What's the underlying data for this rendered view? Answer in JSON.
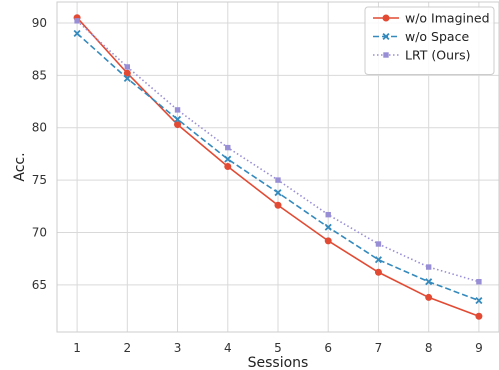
{
  "chart_data": {
    "type": "line",
    "xlabel": "Sessions",
    "ylabel": "Acc.",
    "x": [
      1,
      2,
      3,
      4,
      5,
      6,
      7,
      8,
      9
    ],
    "xlim": [
      0.6,
      9.4
    ],
    "ylim": [
      60.5,
      92
    ],
    "xticks": [
      1,
      2,
      3,
      4,
      5,
      6,
      7,
      8,
      9
    ],
    "yticks": [
      65,
      70,
      75,
      80,
      85,
      90
    ],
    "grid": true,
    "legend_position": "top-right",
    "series": [
      {
        "name": "w/o Imagined",
        "values": [
          90.5,
          85.2,
          80.3,
          76.3,
          72.6,
          69.2,
          66.2,
          63.8,
          62.0
        ],
        "color": "#e24a33",
        "line_style": "solid",
        "marker": "circle"
      },
      {
        "name": "w/o Space",
        "values": [
          89.0,
          84.7,
          80.8,
          77.0,
          73.8,
          70.5,
          67.4,
          65.3,
          63.5
        ],
        "color": "#348abd",
        "line_style": "dashed",
        "marker": "x"
      },
      {
        "name": "LRT (Ours)",
        "values": [
          90.2,
          85.8,
          81.7,
          78.1,
          75.0,
          71.7,
          68.9,
          66.7,
          65.3
        ],
        "color": "#988ed5",
        "line_style": "dotted",
        "marker": "square"
      }
    ]
  }
}
